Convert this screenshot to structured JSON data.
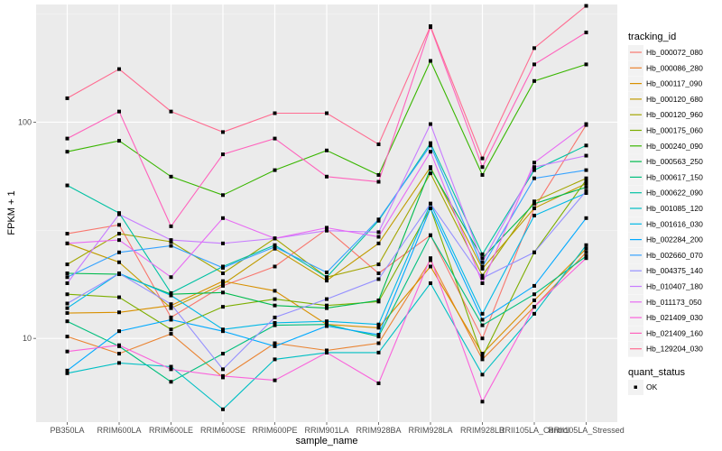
{
  "chart_data": {
    "type": "line",
    "title": "",
    "xlabel": "sample_name",
    "ylabel": "FPKM + 1",
    "y_scale": "log10",
    "ylim": [
      4.1,
      350
    ],
    "y_ticks": [
      10,
      100
    ],
    "y_tick_labels": [
      "10",
      "100"
    ],
    "grid": true,
    "legend_position": "right",
    "categories": [
      "PB350LA",
      "RRIM600LA",
      "RRIM600LE",
      "RRIM600SE",
      "RRIM600PE",
      "RRIM901LA",
      "RRIM928BA",
      "RRIM928LA",
      "RRIM928LB",
      "RRII105LA_Control",
      "RRII105LA_Stressed"
    ],
    "legend_title": "tracking_id",
    "shape_legend_title": "quant_status",
    "shape_legend_items": [
      "OK"
    ],
    "series": [
      {
        "name": "Hb_000072_080",
        "color": "#F8766D",
        "values": [
          30.5,
          33.5,
          12.5,
          17.5,
          21.5,
          32,
          20,
          30,
          10,
          40,
          97
        ]
      },
      {
        "name": "Hb_000086_280",
        "color": "#EA8331",
        "values": [
          10.2,
          8.5,
          10.5,
          6.6,
          9.5,
          8.8,
          9.5,
          23,
          8.0,
          14,
          25
        ]
      },
      {
        "name": "Hb_000117_090",
        "color": "#D89000",
        "values": [
          13.1,
          13.2,
          14.2,
          18.4,
          16.6,
          11.6,
          11.2,
          21.5,
          8.5,
          15,
          26
        ]
      },
      {
        "name": "Hb_000120_680",
        "color": "#C09B00",
        "values": [
          27.5,
          22.5,
          13.8,
          17.8,
          26,
          18.5,
          27.5,
          62,
          21,
          40,
          52
        ]
      },
      {
        "name": "Hb_000120_960",
        "color": "#A3A500",
        "values": [
          22,
          30.5,
          28,
          20,
          29,
          19.2,
          22,
          58,
          19.5,
          43,
          55
        ]
      },
      {
        "name": "Hb_000175_060",
        "color": "#7CAE00",
        "values": [
          16,
          15.5,
          11,
          14,
          15.2,
          14.2,
          14.8,
          40,
          8.2,
          25,
          54
        ]
      },
      {
        "name": "Hb_000240_090",
        "color": "#39B600",
        "values": [
          73,
          82,
          56,
          46,
          60,
          74,
          57,
          192,
          57,
          155,
          185
        ]
      },
      {
        "name": "Hb_000563_250",
        "color": "#00BB4E",
        "values": [
          20,
          19.8,
          16,
          16.3,
          14.2,
          13.8,
          15,
          61,
          23.5,
          42,
          50
        ]
      },
      {
        "name": "Hb_000617_150",
        "color": "#00BF7D",
        "values": [
          12,
          9.2,
          6.3,
          8.5,
          11.5,
          11.6,
          10.2,
          30,
          11.5,
          16,
          24
        ]
      },
      {
        "name": "Hb_000622_090",
        "color": "#00C1A3",
        "values": [
          51,
          38,
          16.2,
          21.5,
          27,
          19.2,
          35,
          80,
          24.5,
          60,
          78
        ]
      },
      {
        "name": "Hb_001085_120",
        "color": "#00BFC4",
        "values": [
          6.9,
          7.7,
          7.4,
          4.7,
          8.0,
          8.6,
          8.6,
          18,
          6.8,
          13,
          27
        ]
      },
      {
        "name": "Hb_001616_030",
        "color": "#00B8E7",
        "values": [
          13.8,
          20,
          15.8,
          11,
          11.8,
          12,
          11.6,
          42,
          13,
          37,
          47
        ]
      },
      {
        "name": "Hb_002284_200",
        "color": "#00A9FF",
        "values": [
          7.1,
          10.8,
          12.2,
          10.8,
          9.2,
          11.4,
          10.4,
          40,
          12.2,
          17.5,
          36
        ]
      },
      {
        "name": "Hb_002660_070",
        "color": "#35A2FF",
        "values": [
          19.2,
          25,
          26.8,
          21.2,
          26.5,
          20.2,
          35.5,
          78,
          21.5,
          55,
          60
        ]
      },
      {
        "name": "Hb_004375_140",
        "color": "#9590FF",
        "values": [
          14.5,
          20,
          14.4,
          7.2,
          12.5,
          15.2,
          18.8,
          42,
          19,
          25,
          48
        ]
      },
      {
        "name": "Hb_010407_180",
        "color": "#C77CFF",
        "values": [
          18,
          37.5,
          28.5,
          27.5,
          29,
          31.5,
          31,
          98,
          22.5,
          62,
          70
        ]
      },
      {
        "name": "Hb_011173_050",
        "color": "#E76BF3",
        "values": [
          27.5,
          28.5,
          19.2,
          36,
          29,
          32.5,
          29.5,
          73,
          18,
          65,
          98
        ]
      },
      {
        "name": "Hb_021409_030",
        "color": "#FA62DB",
        "values": [
          8.7,
          9.3,
          7.2,
          6.7,
          6.4,
          8.6,
          6.2,
          23.5,
          5.1,
          14,
          23.5
        ]
      },
      {
        "name": "Hb_021409_160",
        "color": "#FF62BC",
        "values": [
          84,
          112,
          33,
          71,
          84,
          56,
          53,
          275,
          62,
          185,
          260
        ]
      },
      {
        "name": "Hb_129204_030",
        "color": "#FF6C91",
        "values": [
          129,
          176,
          112,
          90,
          110,
          110,
          79,
          278,
          68,
          220,
          345
        ]
      }
    ]
  }
}
